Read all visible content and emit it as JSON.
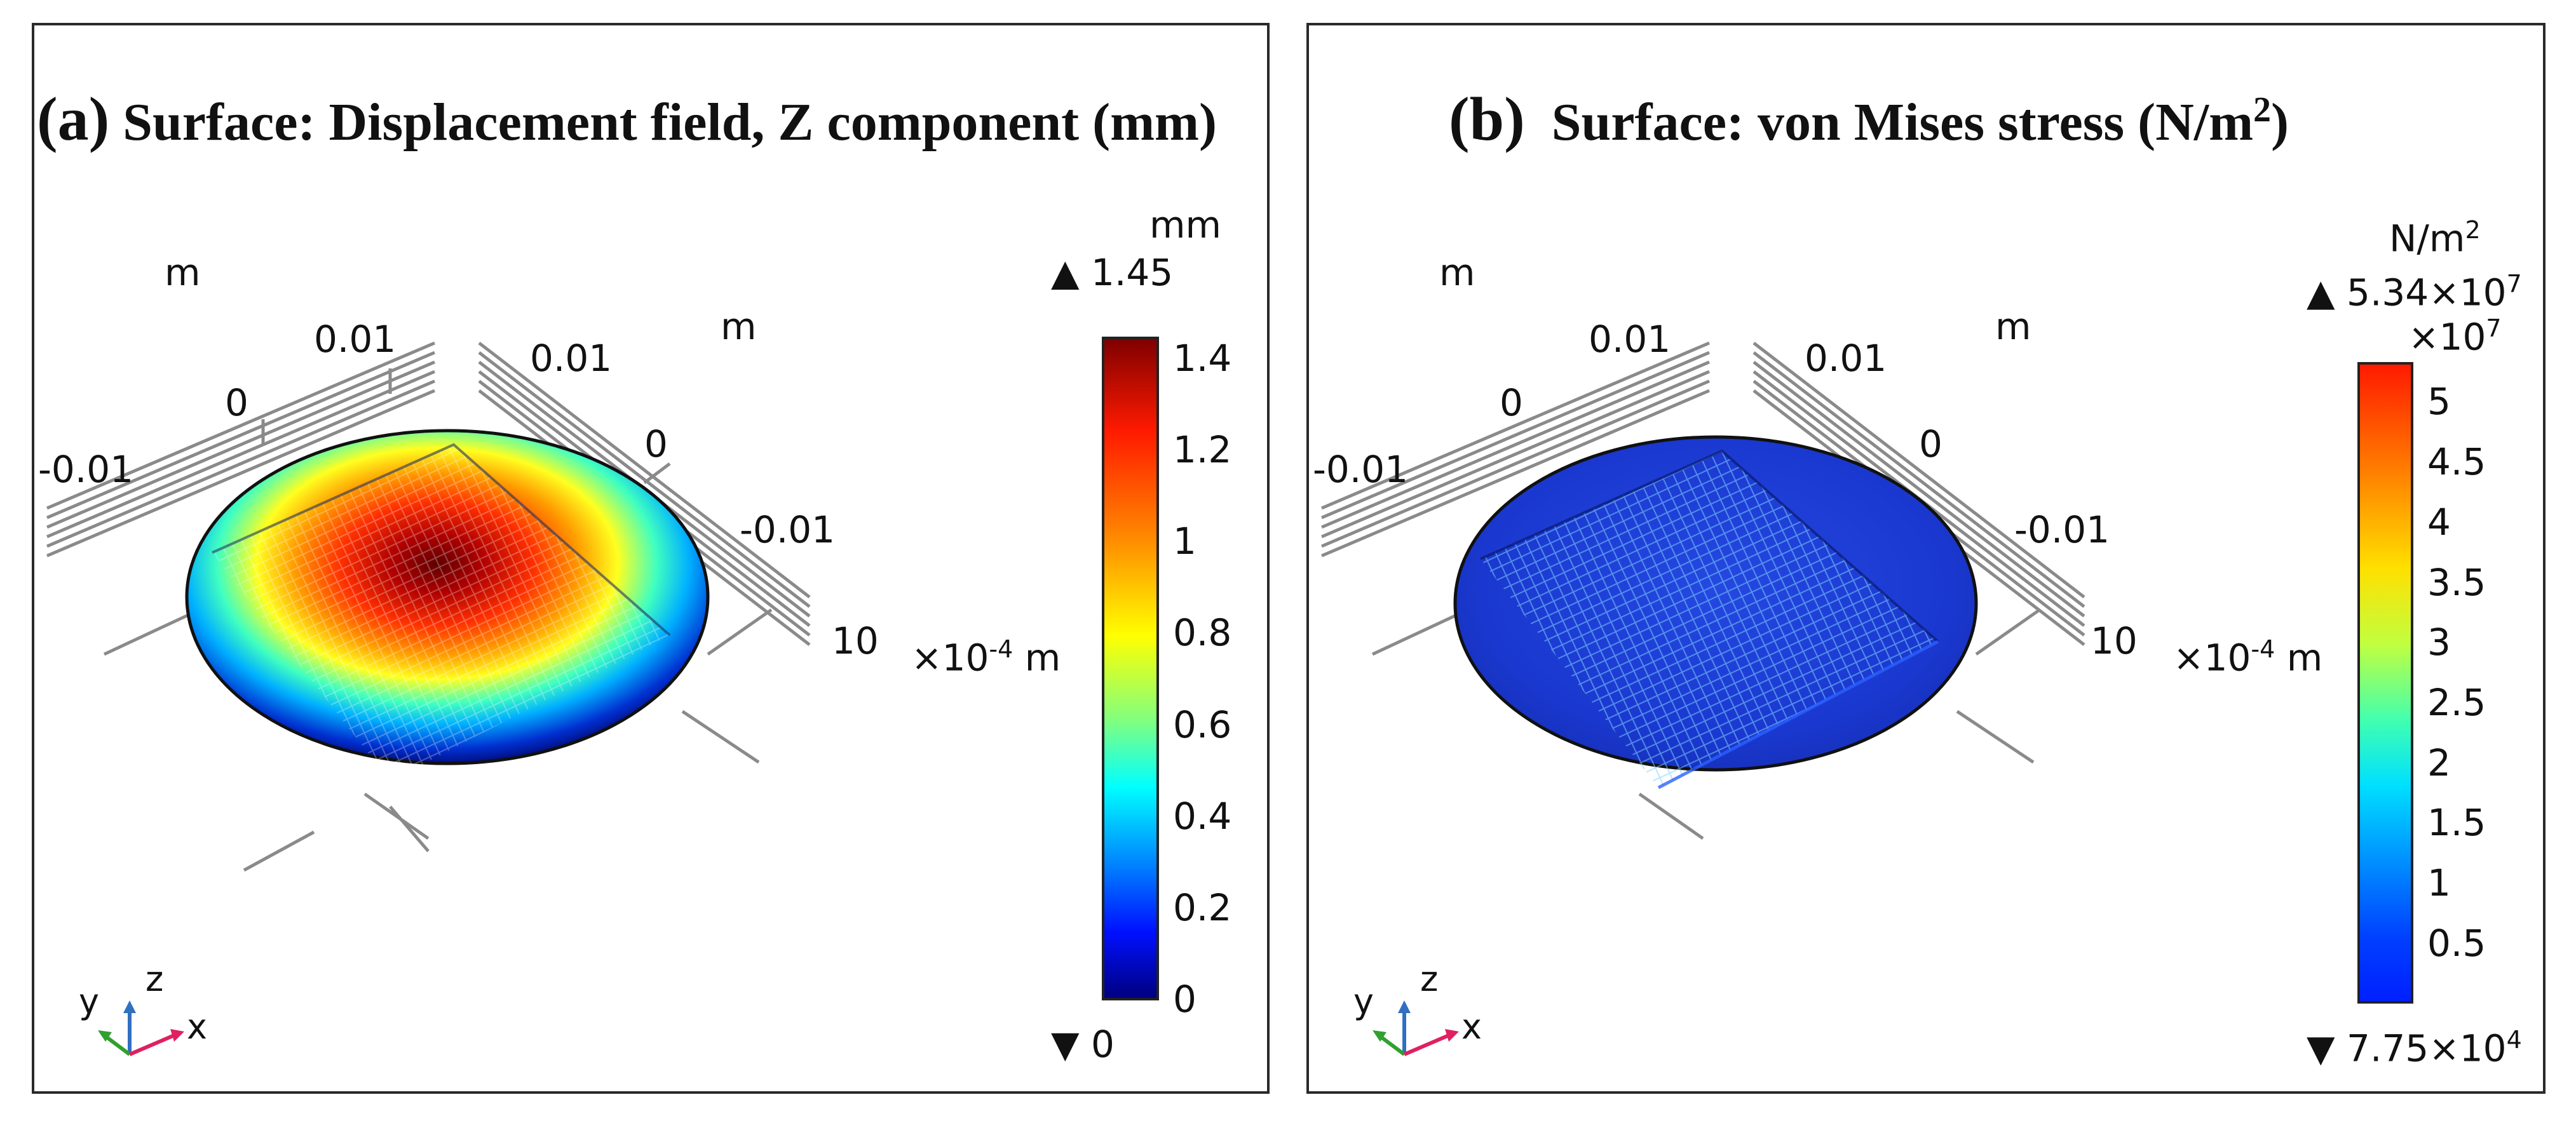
{
  "panels": [
    {
      "letter": "(a)",
      "title": "Surface: Displacement field, Z component (mm)",
      "axis_unit_left": "m",
      "axis_unit_right": "m",
      "axis_ticks_left": [
        "0.01",
        "0",
        "-0.01"
      ],
      "axis_ticks_right": [
        "0.01",
        "0",
        "-0.01"
      ],
      "vertical_tick": "10",
      "vertical_unit": "×10",
      "vertical_unit_exp": "-4",
      "vertical_unit_suffix": " m",
      "colorbar": {
        "unit": "mm",
        "unit_exp": "",
        "max_label": "1.45",
        "max_exp": "",
        "min_label": "0",
        "min_exp": "",
        "multiplier": "",
        "multiplier_exp": "",
        "ticks": [
          "1.4",
          "1.2",
          "1",
          "0.8",
          "0.6",
          "0.4",
          "0.2",
          "0"
        ]
      },
      "triad": {
        "x": "x",
        "y": "y",
        "z": "z"
      }
    },
    {
      "letter": "(b)",
      "title": "Surface: von Mises stress (N/m",
      "title_sup": "2",
      "title_end": ")",
      "axis_unit_left": "m",
      "axis_unit_right": "m",
      "axis_ticks_left": [
        "0.01",
        "0",
        "-0.01"
      ],
      "axis_ticks_right": [
        "0.01",
        "0",
        "-0.01"
      ],
      "vertical_tick": "10",
      "vertical_unit": "×10",
      "vertical_unit_exp": "-4",
      "vertical_unit_suffix": " m",
      "colorbar": {
        "unit": "N/m",
        "unit_exp": "2",
        "max_label": "5.34×10",
        "max_exp": "7",
        "min_label": "7.75×10",
        "min_exp": "4",
        "multiplier": "×10",
        "multiplier_exp": "7",
        "ticks": [
          "5",
          "4.5",
          "4",
          "3.5",
          "3",
          "2.5",
          "2",
          "1.5",
          "1",
          "0.5"
        ]
      },
      "triad": {
        "x": "x",
        "y": "y",
        "z": "z"
      }
    }
  ],
  "colors": {
    "jet_dark_red": "#7f0000",
    "jet_red": "#ff2000",
    "jet_yellow": "#ffff00",
    "jet_cyan": "#00ffff",
    "jet_blue": "#0030ff",
    "jet_dark_blue": "#00007f",
    "stress_blue": "#1a3ad8"
  }
}
